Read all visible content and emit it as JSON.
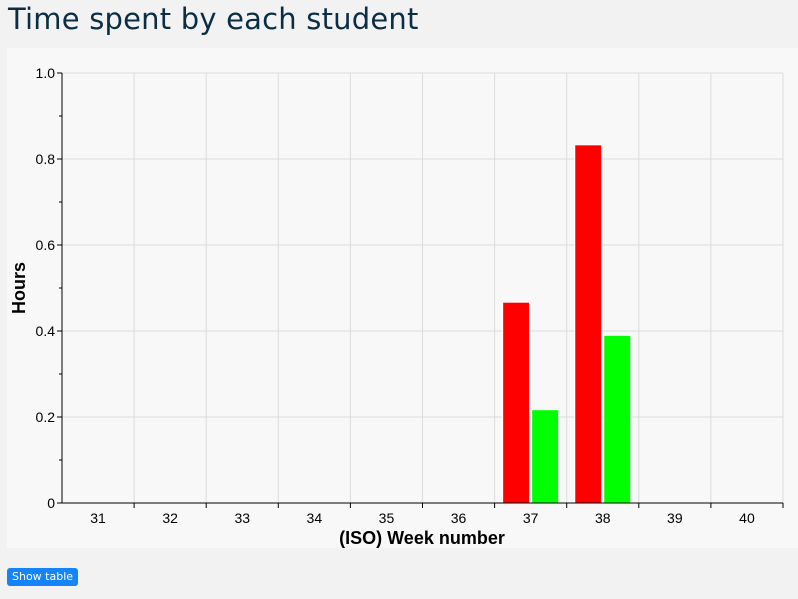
{
  "page": {
    "title": "Time spent by each student"
  },
  "controls": {
    "show_table_label": "Show table"
  },
  "chart_data": {
    "type": "bar",
    "title": "",
    "xlabel": "(ISO) Week number",
    "ylabel": "Hours",
    "categories": [
      "31",
      "32",
      "33",
      "34",
      "35",
      "36",
      "37",
      "38",
      "39",
      "40"
    ],
    "ylim": [
      0,
      1.0
    ],
    "yticks": [
      "0",
      "0.2",
      "0.4",
      "0.6",
      "0.8",
      "1.0"
    ],
    "ytick_values": [
      0,
      0.2,
      0.4,
      0.6,
      0.8,
      1.0
    ],
    "grid": true,
    "legend": "none",
    "series": [
      {
        "color": "#ff0000",
        "values": [
          0,
          0,
          0,
          0,
          0,
          0,
          0.467,
          0.833,
          0,
          0
        ]
      },
      {
        "color": "#00ff00",
        "values": [
          0,
          0,
          0,
          0,
          0,
          0,
          0.217,
          0.39,
          0,
          0
        ]
      }
    ]
  }
}
